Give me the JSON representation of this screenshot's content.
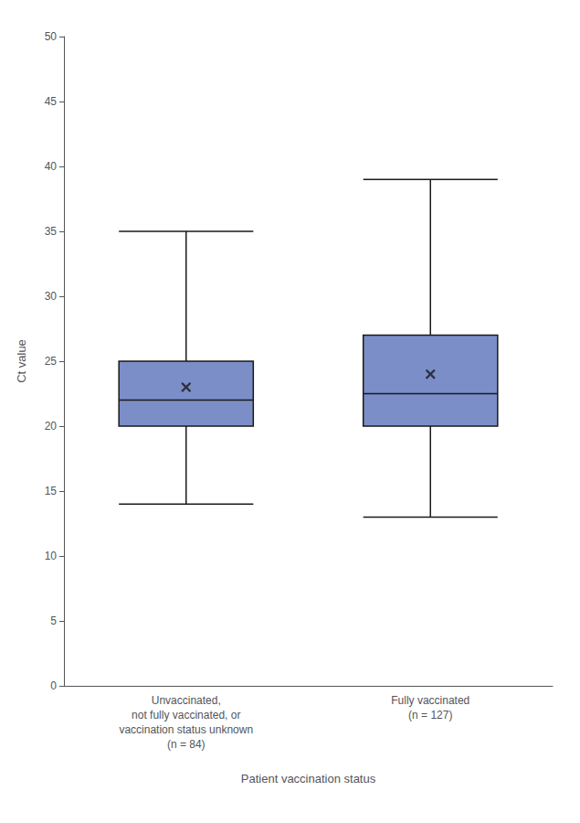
{
  "chart_data": {
    "type": "boxplot",
    "xlabel": "Patient vaccination status",
    "ylabel": "Ct value",
    "categories": [
      "Unvaccinated,\nnot fully vaccinated, or\nvaccination status unknown\n(n = 84)",
      "Fully vaccinated\n(n = 127)"
    ],
    "values": [
      [
        14,
        20,
        22,
        25,
        35
      ],
      [
        13,
        20,
        22.5,
        27,
        39
      ]
    ],
    "means": [
      23.0,
      24.0
    ],
    "color": "#7B8EC8",
    "marker": "x",
    "ylim": [
      0,
      50
    ],
    "yticks": [
      0,
      5,
      10,
      15,
      20,
      25,
      30,
      35,
      40,
      45,
      50
    ],
    "grid": false
  }
}
